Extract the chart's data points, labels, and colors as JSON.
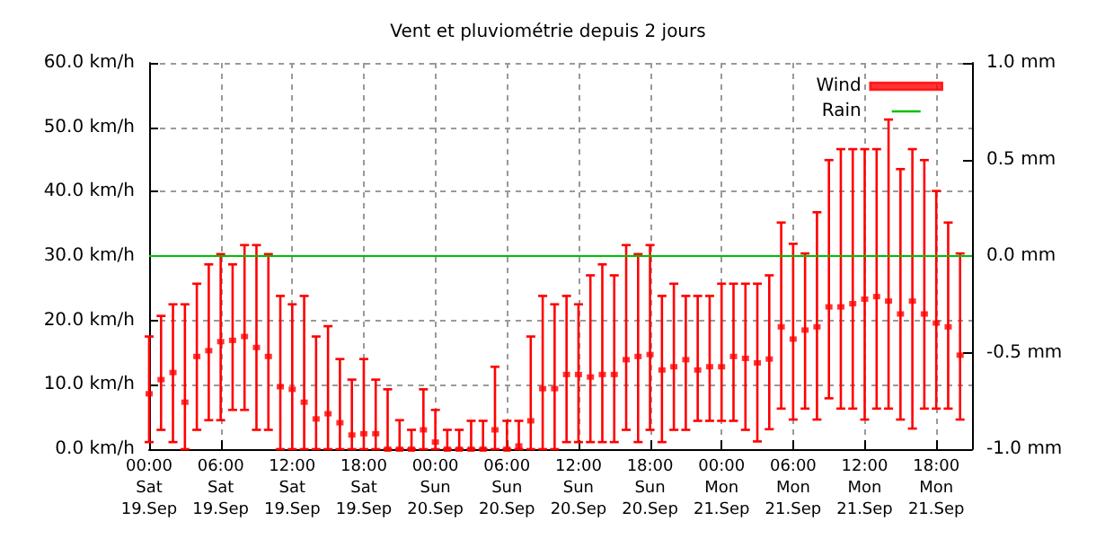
{
  "chart_data": {
    "type": "scatter",
    "title": "Vent et pluviométrie depuis 2 jours",
    "categories": [
      "00:00\nSat\n19.Sep",
      null,
      null,
      null,
      null,
      null,
      "06:00\nSat\n19.Sep",
      null,
      null,
      null,
      null,
      null,
      "12:00\nSat\n19.Sep",
      null,
      null,
      null,
      null,
      null,
      "18:00\nSat\n19.Sep",
      null,
      null,
      null,
      null,
      null,
      "00:00\nSun\n20.Sep",
      null,
      null,
      null,
      null,
      null,
      "06:00\nSun\n20.Sep",
      null,
      null,
      null,
      null,
      null,
      "12:00\nSun\n20.Sep",
      null,
      null,
      null,
      null,
      null,
      "18:00\nSun\n20.Sep",
      null,
      null,
      null,
      null,
      null,
      "00:00\nMon\n21.Sep",
      null,
      null,
      null,
      null,
      null,
      "06:00\nMon\n21.Sep",
      null,
      null,
      null,
      null,
      null,
      "12:00\nMon\n21.Sep",
      null,
      null,
      null,
      null,
      null,
      "18:00\nMon\n21.Sep",
      null,
      null,
      null
    ],
    "series": [
      {
        "name": "Wind",
        "color": "#ff0000",
        "values": [
          8.6,
          10.8,
          11.9,
          7.3,
          14.4,
          15.3,
          16.7,
          16.9,
          17.5,
          15.8,
          14.4,
          9.7,
          9.3,
          7.3,
          4.7,
          5.5,
          4.1,
          2.2,
          2.4,
          2.4,
          0,
          0,
          0,
          3,
          1.1,
          0,
          0,
          0,
          0,
          3,
          0,
          0.5,
          4.4,
          9.4,
          9.4,
          11.6,
          11.6,
          11.2,
          11.6,
          11.6,
          13.9,
          14.4,
          14.7,
          12.3,
          12.8,
          13.9,
          12.3,
          12.8,
          12.8,
          14.4,
          14.1,
          13.4,
          14,
          19,
          17.1,
          18.5,
          19,
          22.1,
          22.1,
          22.6,
          23.3,
          23.7,
          23,
          21,
          23,
          21,
          19.6,
          19,
          14.6,
          null
        ],
        "errors": [
          [
            1.1,
            17.5
          ],
          [
            3,
            20.7
          ],
          [
            1.1,
            22.5
          ],
          [
            0,
            22.5
          ],
          [
            3,
            25.7
          ],
          [
            4.5,
            28.7
          ],
          [
            4.5,
            30.3
          ],
          [
            6.1,
            28.7
          ],
          [
            6.1,
            31.7
          ],
          [
            3,
            31.7
          ],
          [
            3,
            30.3
          ],
          [
            0,
            23.8
          ],
          [
            0,
            22.5
          ],
          [
            0,
            23.8
          ],
          [
            0,
            17.5
          ],
          [
            0,
            19.1
          ],
          [
            0,
            14
          ],
          [
            0,
            10.8
          ],
          [
            0,
            14
          ],
          [
            0,
            10.8
          ],
          [
            0,
            9.3
          ],
          [
            0,
            4.5
          ],
          [
            0,
            3
          ],
          [
            0,
            9.3
          ],
          [
            0,
            6.1
          ],
          [
            0,
            3
          ],
          [
            0,
            3
          ],
          [
            0,
            4.4
          ],
          [
            0,
            4.4
          ],
          [
            0,
            12.8
          ],
          [
            0,
            4.4
          ],
          [
            0,
            4.4
          ],
          [
            0,
            17.5
          ],
          [
            0,
            23.8
          ],
          [
            0,
            22.5
          ],
          [
            1.1,
            23.8
          ],
          [
            1.1,
            22.5
          ],
          [
            1.1,
            27
          ],
          [
            1.1,
            28.7
          ],
          [
            1.1,
            27
          ],
          [
            3,
            31.7
          ],
          [
            1.1,
            30.3
          ],
          [
            3,
            31.7
          ],
          [
            1.1,
            23.8
          ],
          [
            3,
            25.7
          ],
          [
            3,
            23.8
          ],
          [
            4.4,
            23.8
          ],
          [
            4.4,
            23.8
          ],
          [
            4.4,
            25.7
          ],
          [
            4.4,
            25.7
          ],
          [
            3,
            25.7
          ],
          [
            1.2,
            25.7
          ],
          [
            3.1,
            27
          ],
          [
            6.3,
            35.2
          ],
          [
            4.6,
            31.9
          ],
          [
            6.3,
            30.4
          ],
          [
            4.6,
            36.8
          ],
          [
            7.9,
            44.9
          ],
          [
            6.3,
            46.6
          ],
          [
            6.3,
            46.6
          ],
          [
            4.6,
            46.6
          ],
          [
            6.3,
            46.6
          ],
          [
            6.3,
            51.2
          ],
          [
            4.6,
            43.5
          ],
          [
            3.2,
            46.6
          ],
          [
            6.3,
            44.9
          ],
          [
            6.3,
            40.1
          ],
          [
            6.3,
            35.2
          ],
          [
            4.6,
            30.4
          ],
          null
        ]
      },
      {
        "name": "Rain",
        "type": "line",
        "axis": "y2",
        "color": "#00c000",
        "values": [
          0,
          0,
          0,
          0,
          0,
          0,
          0,
          0,
          0,
          0,
          0,
          0,
          0,
          0,
          0,
          0,
          0,
          0,
          0,
          0,
          0,
          0,
          0,
          0,
          0,
          0,
          0,
          0,
          0,
          0,
          0,
          0,
          0,
          0,
          0,
          0,
          0,
          0,
          0,
          0,
          0,
          0,
          0,
          0,
          0,
          0,
          0,
          0,
          0,
          0,
          0,
          0,
          0,
          0,
          0,
          0,
          0,
          0,
          0,
          0,
          0,
          0,
          0,
          0,
          0,
          0,
          0,
          0,
          0,
          0
        ]
      }
    ],
    "ylim": [
      0,
      60
    ],
    "yticks": [
      {
        "value": 0,
        "label": "0.0 km/h"
      },
      {
        "value": 10,
        "label": "10.0 km/h"
      },
      {
        "value": 20,
        "label": "20.0 km/h"
      },
      {
        "value": 30,
        "label": "30.0 km/h"
      },
      {
        "value": 40,
        "label": "40.0 km/h"
      },
      {
        "value": 50,
        "label": "50.0 km/h"
      },
      {
        "value": 60,
        "label": "60.0 km/h"
      }
    ],
    "y2lim": [
      -1,
      1
    ],
    "y2ticks": [
      {
        "value": -1,
        "label": "-1.0 mm"
      },
      {
        "value": -0.5,
        "label": "-0.5 mm"
      },
      {
        "value": 0,
        "label": "0.0 mm"
      },
      {
        "value": 0.5,
        "label": "0.5 mm"
      },
      {
        "value": 1,
        "label": "1.0 mm"
      }
    ],
    "grid": true,
    "legend": "top right"
  }
}
